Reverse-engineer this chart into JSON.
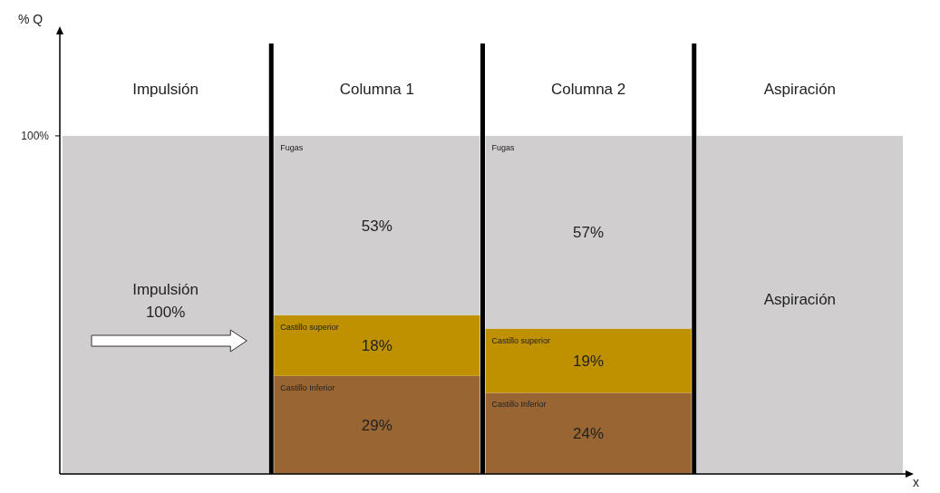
{
  "chart_data": {
    "type": "bar",
    "stacked": true,
    "xlabel": "x",
    "ylabel": "% Q",
    "categories": [
      "Impulsión",
      "Columna 1",
      "Columna 2",
      "Aspiración"
    ],
    "ylim": [
      0,
      130
    ],
    "yticks": [
      {
        "value": 100,
        "label": "100%"
      }
    ],
    "grid": false,
    "legend": false,
    "series": [
      {
        "name": "Castillo Inferior",
        "color": "#996633",
        "values": [
          null,
          29,
          24,
          null
        ],
        "value_labels": [
          null,
          "29%",
          "24%",
          null
        ]
      },
      {
        "name": "Castillo superior",
        "color": "#bf9000",
        "values": [
          null,
          18,
          19,
          null
        ],
        "value_labels": [
          null,
          "18%",
          "19%",
          null
        ]
      },
      {
        "name": "Fugas",
        "color": "#d0cecf",
        "values": [
          null,
          53,
          57,
          null
        ],
        "value_labels": [
          null,
          "53%",
          "57%",
          null
        ]
      },
      {
        "color": "#d0cecf",
        "values": [
          100,
          null,
          null,
          100
        ],
        "value_labels": [
          "100%",
          null,
          null,
          null
        ]
      }
    ],
    "annotations": [
      "Impulsión",
      "Aspiración"
    ]
  }
}
